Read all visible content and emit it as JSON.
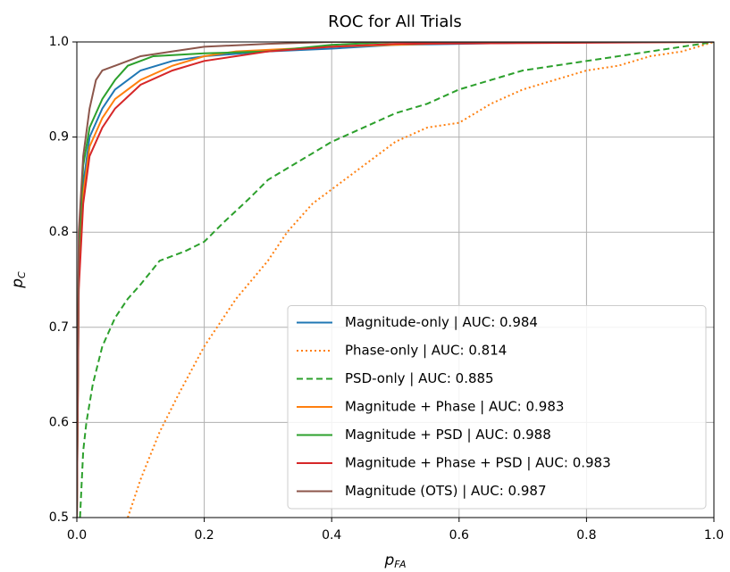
{
  "chart_data": {
    "type": "line",
    "title": "ROC for All Trials",
    "xlabel": {
      "text": "p",
      "subscript": "FA"
    },
    "ylabel": {
      "text": "p",
      "subscript": "C"
    },
    "xlim": [
      0,
      1
    ],
    "ylim": [
      0.5,
      1
    ],
    "xticks": [
      {
        "value": 0,
        "label": "0.0"
      },
      0.2,
      0.4,
      0.6,
      0.8,
      {
        "value": 1,
        "label": "1.0"
      }
    ],
    "yticks": [
      0.5,
      0.6,
      0.7,
      0.8,
      0.9,
      {
        "value": 1,
        "label": "1.0"
      }
    ],
    "grid": true,
    "legend": "lower right",
    "series": [
      {
        "name": "Magnitude-only | AUC: 0.984",
        "color": "#1f77b4",
        "dash": "solid",
        "x": [
          0,
          0.003,
          0.01,
          0.02,
          0.04,
          0.06,
          0.08,
          0.1,
          0.15,
          0.2,
          0.3,
          0.4,
          0.5,
          0.6,
          0.77,
          1
        ],
        "values": [
          0.5,
          0.75,
          0.85,
          0.9,
          0.93,
          0.95,
          0.96,
          0.97,
          0.98,
          0.985,
          0.99,
          0.993,
          0.997,
          0.998,
          1,
          1
        ]
      },
      {
        "name": "Phase-only | AUC: 0.814",
        "color": "#ff7f0e",
        "dash": "dotted",
        "x": [
          0.08,
          0.1,
          0.13,
          0.16,
          0.2,
          0.25,
          0.3,
          0.33,
          0.37,
          0.42,
          0.46,
          0.5,
          0.55,
          0.6,
          0.65,
          0.7,
          0.75,
          0.8,
          0.85,
          0.9,
          0.95,
          1
        ],
        "values": [
          0.5,
          0.54,
          0.59,
          0.63,
          0.68,
          0.73,
          0.77,
          0.8,
          0.83,
          0.855,
          0.875,
          0.895,
          0.91,
          0.915,
          0.935,
          0.95,
          0.96,
          0.97,
          0.975,
          0.985,
          0.99,
          1
        ]
      },
      {
        "name": "PSD-only | AUC: 0.885",
        "color": "#2ca02c",
        "dash": "dashed",
        "x": [
          0.005,
          0.01,
          0.015,
          0.025,
          0.04,
          0.06,
          0.08,
          0.1,
          0.13,
          0.17,
          0.2,
          0.23,
          0.27,
          0.3,
          0.35,
          0.4,
          0.45,
          0.5,
          0.55,
          0.6,
          0.65,
          0.7,
          0.8,
          0.9,
          1
        ],
        "values": [
          0.5,
          0.57,
          0.6,
          0.64,
          0.68,
          0.71,
          0.73,
          0.745,
          0.77,
          0.78,
          0.79,
          0.81,
          0.835,
          0.855,
          0.875,
          0.895,
          0.91,
          0.925,
          0.935,
          0.95,
          0.96,
          0.97,
          0.98,
          0.99,
          1
        ]
      },
      {
        "name": "Magnitude + Phase | AUC: 0.983",
        "color": "#ff7f0e",
        "dash": "solid",
        "x": [
          0,
          0.003,
          0.01,
          0.02,
          0.04,
          0.06,
          0.1,
          0.15,
          0.2,
          0.25,
          0.4,
          0.6,
          1
        ],
        "values": [
          0.5,
          0.75,
          0.84,
          0.89,
          0.92,
          0.94,
          0.96,
          0.975,
          0.985,
          0.99,
          0.995,
          0.999,
          1
        ]
      },
      {
        "name": "Magnitude + PSD | AUC: 0.988",
        "color": "#2ca02c",
        "dash": "solid",
        "x": [
          0,
          0.003,
          0.01,
          0.02,
          0.04,
          0.06,
          0.08,
          0.12,
          0.2,
          0.3,
          0.4,
          0.5,
          1
        ],
        "values": [
          0.5,
          0.78,
          0.87,
          0.91,
          0.94,
          0.96,
          0.975,
          0.985,
          0.988,
          0.99,
          0.997,
          1,
          1
        ]
      },
      {
        "name": "Magnitude + Phase + PSD | AUC: 0.983",
        "color": "#d62728",
        "dash": "solid",
        "x": [
          0,
          0.003,
          0.01,
          0.02,
          0.04,
          0.06,
          0.1,
          0.15,
          0.2,
          0.3,
          0.4,
          0.5,
          1
        ],
        "values": [
          0.5,
          0.74,
          0.83,
          0.88,
          0.91,
          0.93,
          0.955,
          0.97,
          0.98,
          0.99,
          0.995,
          0.998,
          1
        ]
      },
      {
        "name": "Magnitude (OTS) | AUC: 0.987",
        "color": "#8c564b",
        "dash": "solid",
        "x": [
          0,
          0.003,
          0.01,
          0.02,
          0.03,
          0.04,
          0.06,
          0.08,
          0.1,
          0.15,
          0.2,
          0.3,
          0.4,
          1
        ],
        "values": [
          0.5,
          0.8,
          0.88,
          0.93,
          0.96,
          0.97,
          0.975,
          0.98,
          0.985,
          0.99,
          0.995,
          0.998,
          1,
          1
        ]
      }
    ]
  }
}
